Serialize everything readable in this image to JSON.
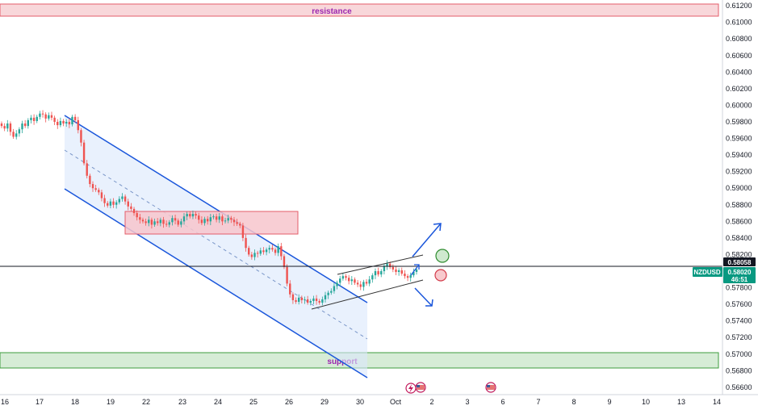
{
  "chart_data": {
    "type": "candlestick",
    "symbol": "NZDUSD",
    "y_axis": {
      "ticks": [
        "0.61200",
        "0.61000",
        "0.60800",
        "0.60600",
        "0.60400",
        "0.60200",
        "0.60000",
        "0.59800",
        "0.59600",
        "0.59400",
        "0.59200",
        "0.59000",
        "0.58800",
        "0.58600",
        "0.58400",
        "0.58200",
        "0.57800",
        "0.57600",
        "0.57400",
        "0.57200",
        "0.57000",
        "0.56800",
        "0.56600"
      ],
      "range": [
        0.5655,
        0.6124
      ],
      "position": "right"
    },
    "x_axis": {
      "ticks": [
        "16",
        "17",
        "18",
        "19",
        "22",
        "23",
        "24",
        "25",
        "26",
        "29",
        "30",
        "Oct",
        "2",
        "3",
        "6",
        "7",
        "8",
        "9",
        "10",
        "13",
        "14"
      ]
    },
    "price_marks": {
      "level_price": "0.58058",
      "current_symbol": "NZDUSD",
      "current_price": "0.58020",
      "countdown": "46:51"
    },
    "zones": {
      "resistance": {
        "label": "resistance",
        "from": 0.6106,
        "to": 0.612
      },
      "support": {
        "label": "support",
        "from": 0.5685,
        "to": 0.5703
      },
      "mid_box": {
        "label": "",
        "from": 0.5846,
        "to": 0.5873
      }
    },
    "horizontal_level": 0.58058,
    "closes": [
      0.5975,
      0.5972,
      0.5978,
      0.5968,
      0.5962,
      0.5966,
      0.5971,
      0.5978,
      0.5975,
      0.5982,
      0.5985,
      0.5981,
      0.5986,
      0.599,
      0.5989,
      0.5984,
      0.5988,
      0.5985,
      0.598,
      0.5976,
      0.5981,
      0.5978,
      0.598,
      0.5977,
      0.5986,
      0.5982,
      0.597,
      0.5955,
      0.593,
      0.5915,
      0.5905,
      0.59,
      0.5898,
      0.5895,
      0.5888,
      0.5882,
      0.5879,
      0.5884,
      0.588,
      0.5883,
      0.5887,
      0.589,
      0.5884,
      0.5878,
      0.5875,
      0.587,
      0.5865,
      0.5862,
      0.586,
      0.5858,
      0.5862,
      0.5856,
      0.586,
      0.5858,
      0.5862,
      0.5857,
      0.5856,
      0.5859,
      0.5864,
      0.5861,
      0.5856,
      0.586,
      0.5866,
      0.5869,
      0.5866,
      0.5869,
      0.5867,
      0.5862,
      0.5858,
      0.5863,
      0.586,
      0.5865,
      0.5866,
      0.5862,
      0.5866,
      0.586,
      0.5861,
      0.5864,
      0.5862,
      0.5859,
      0.5857,
      0.5855,
      0.584,
      0.5828,
      0.582,
      0.5817,
      0.5822,
      0.5821,
      0.5825,
      0.5823,
      0.5826,
      0.5828,
      0.5826,
      0.5822,
      0.583,
      0.5818,
      0.5805,
      0.5785,
      0.5772,
      0.5765,
      0.5763,
      0.5768,
      0.5765,
      0.5766,
      0.5762,
      0.5764,
      0.5767,
      0.5764,
      0.5762,
      0.5766,
      0.5771,
      0.5774,
      0.5776,
      0.5782,
      0.5786,
      0.5791,
      0.5794,
      0.5792,
      0.5788,
      0.579,
      0.5786,
      0.5784,
      0.5781,
      0.5787,
      0.5785,
      0.579,
      0.5795,
      0.58,
      0.5796,
      0.58,
      0.5806,
      0.5809,
      0.5805,
      0.5802,
      0.5799,
      0.5801,
      0.5797,
      0.5794,
      0.5792,
      0.5795,
      0.5799,
      0.5802
    ]
  }
}
